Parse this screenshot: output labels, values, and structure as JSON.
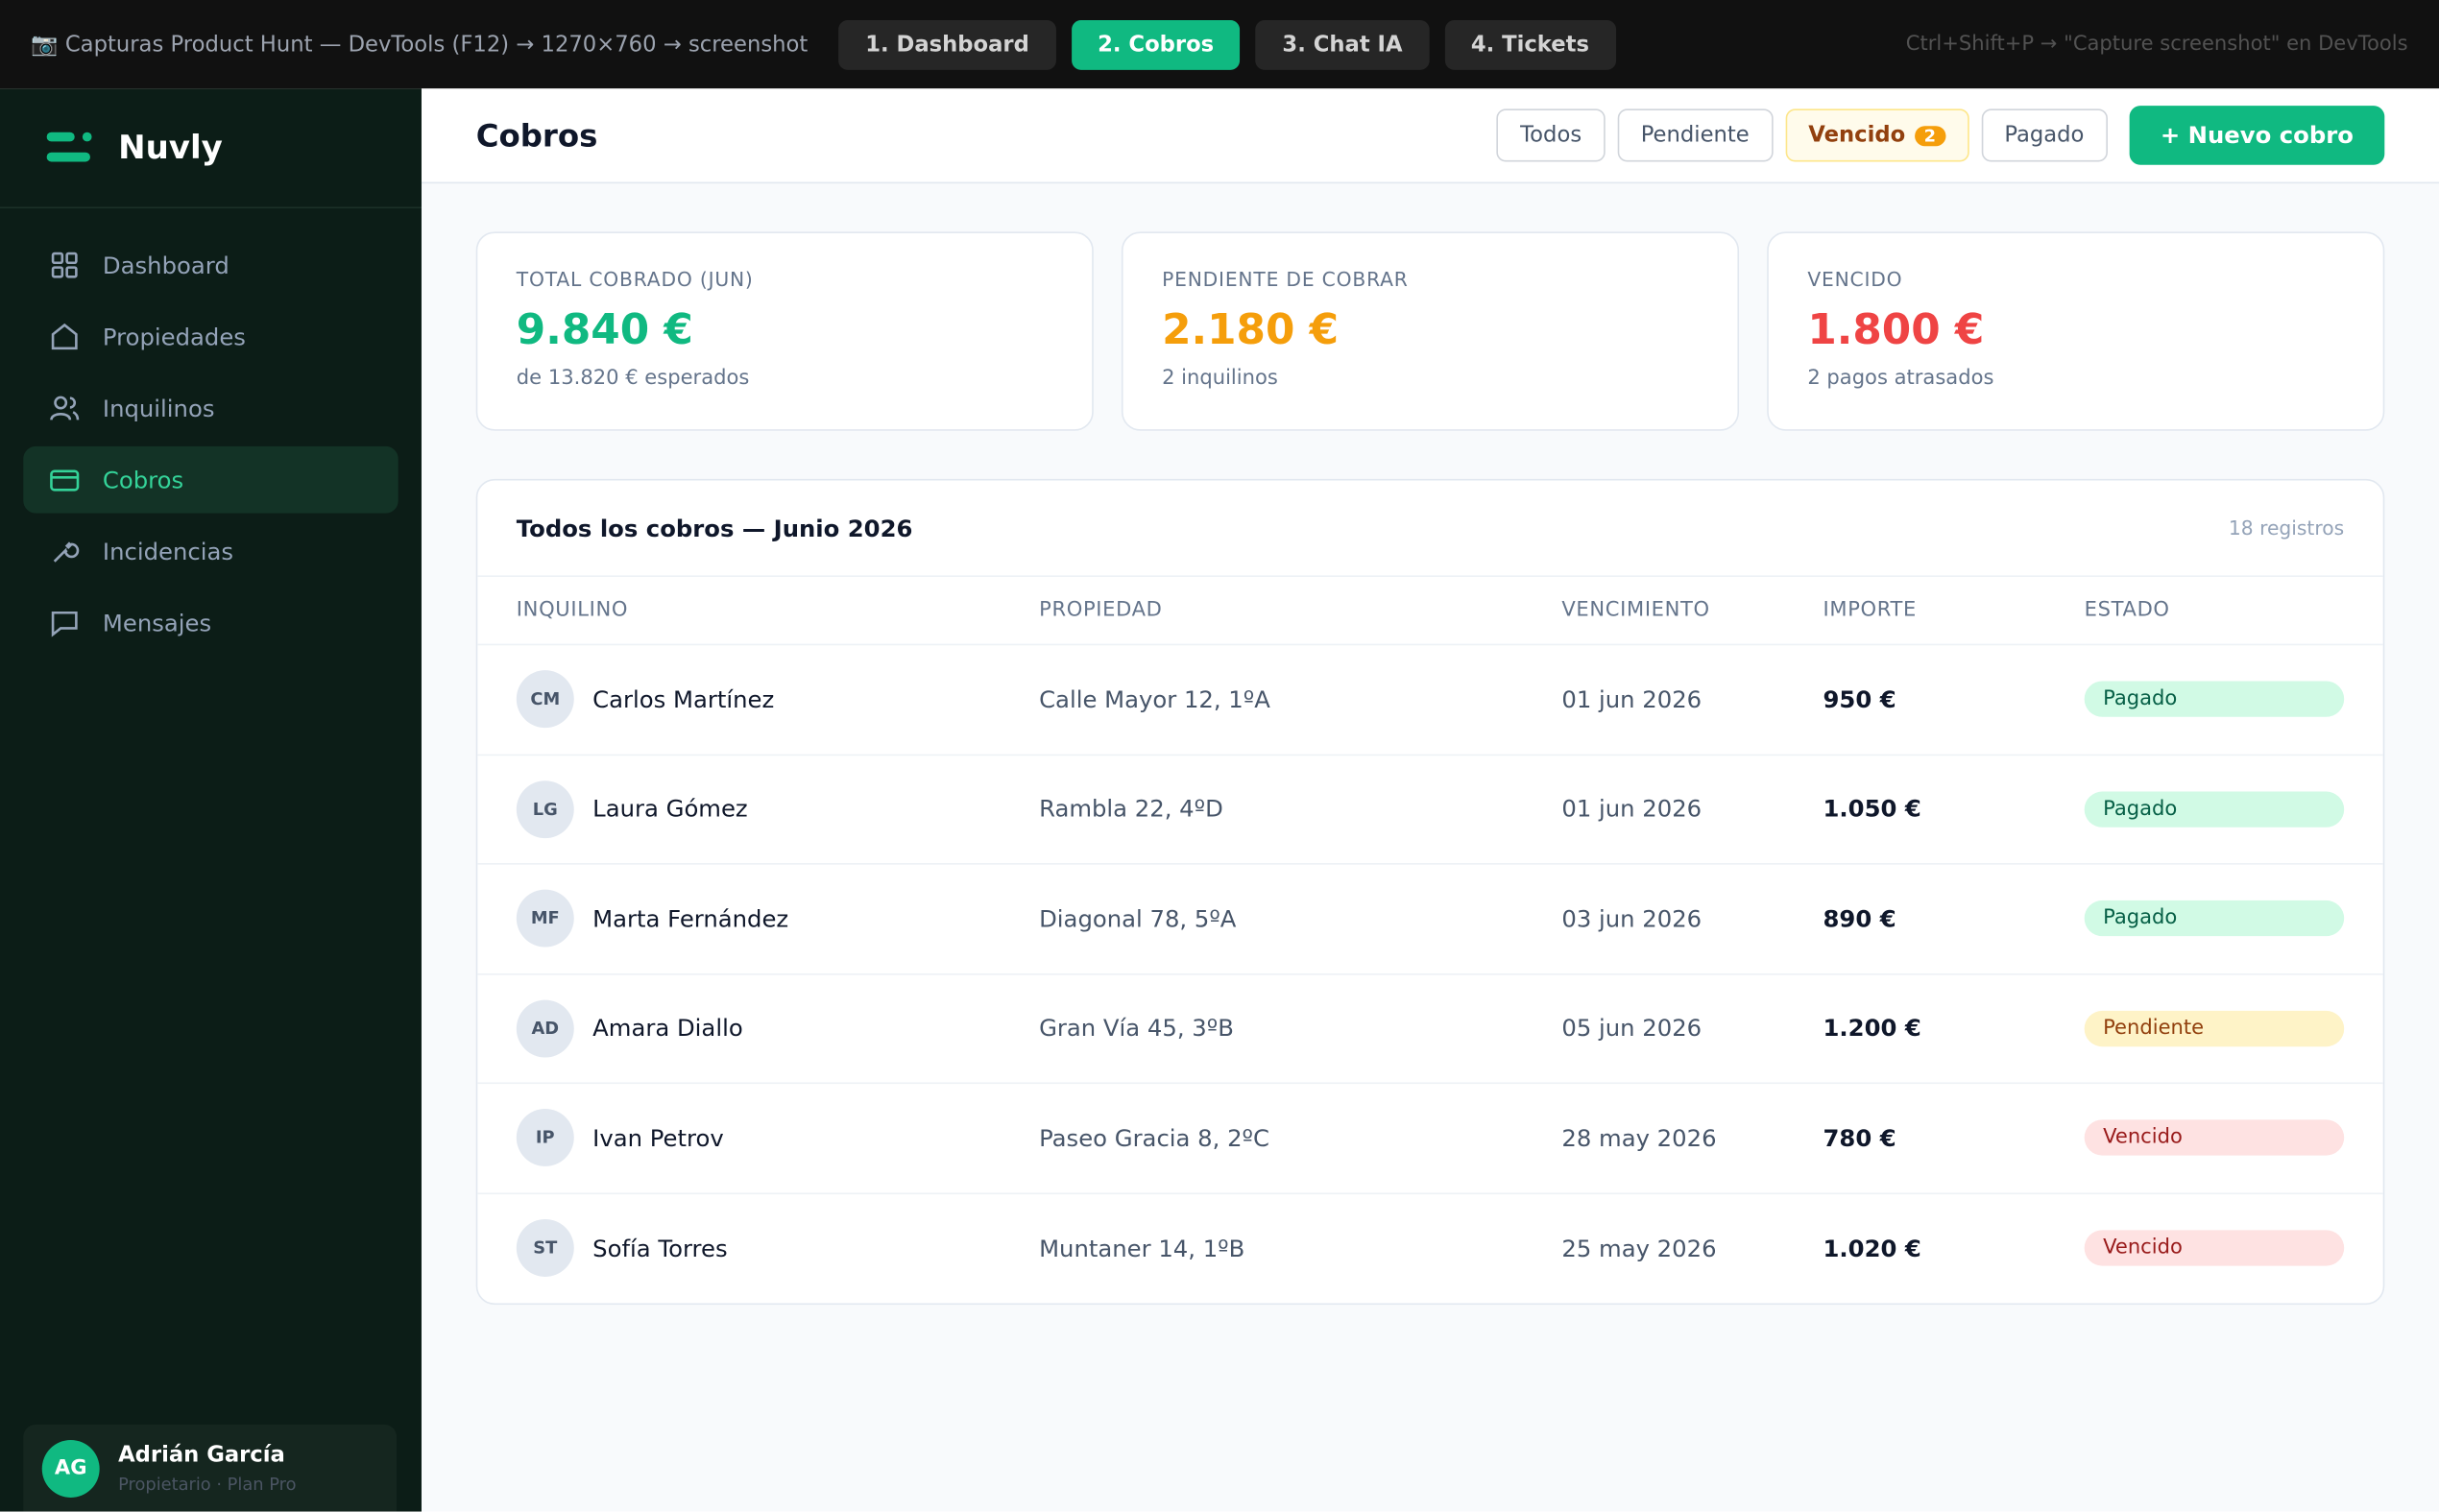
{
  "toolbar": {
    "caption": "📷 Capturas Product Hunt — DevTools (F12) → 1270×760 → screenshot",
    "tabs": [
      "1. Dashboard",
      "2. Cobros",
      "3. Chat IA",
      "4. Tickets"
    ],
    "active_tab": 1,
    "hint": "Ctrl+Shift+P → \"Capture screenshot\" en DevTools"
  },
  "sidebar": {
    "brand": "Nuvly",
    "nav": [
      "Dashboard",
      "Propiedades",
      "Inquilinos",
      "Cobros",
      "Incidencias",
      "Mensajes"
    ],
    "active": 3,
    "user": {
      "initials": "AG",
      "name": "Adrián García",
      "role": "Propietario · Plan Pro"
    }
  },
  "header": {
    "title": "Cobros",
    "filters": [
      "Todos",
      "Pendiente",
      "Vencido",
      "Pagado"
    ],
    "highlighted_filter": 2,
    "badge": "2",
    "button": "+ Nuevo cobro"
  },
  "kpis": [
    {
      "label": "TOTAL COBRADO (JUN)",
      "value": "9.840 €",
      "note": "de 13.820 € esperados",
      "color": "#10b981"
    },
    {
      "label": "PENDIENTE DE COBRAR",
      "value": "2.180 €",
      "note": "2 inquilinos",
      "color": "#f59e0b"
    },
    {
      "label": "VENCIDO",
      "value": "1.800 €",
      "note": "2 pagos atrasados",
      "color": "#ef4444"
    }
  ],
  "table": {
    "title": "Todos los cobros — Junio 2026",
    "count": "18 registros",
    "columns": [
      "INQUILINO",
      "PROPIEDAD",
      "VENCIMIENTO",
      "IMPORTE",
      "ESTADO"
    ],
    "rows": [
      {
        "initials": "CM",
        "name": "Carlos Martínez",
        "property": "Calle Mayor 12, 1ºA",
        "due": "01 jun 2026",
        "amount": "950 €",
        "status": "Pagado",
        "status_bg": "#d1fae5",
        "status_fg": "#065f46"
      },
      {
        "initials": "LG",
        "name": "Laura Gómez",
        "property": "Rambla 22, 4ºD",
        "due": "01 jun 2026",
        "amount": "1.050 €",
        "status": "Pagado",
        "status_bg": "#d1fae5",
        "status_fg": "#065f46"
      },
      {
        "initials": "MF",
        "name": "Marta Fernández",
        "property": "Diagonal 78, 5ºA",
        "due": "03 jun 2026",
        "amount": "890 €",
        "status": "Pagado",
        "status_bg": "#d1fae5",
        "status_fg": "#065f46"
      },
      {
        "initials": "AD",
        "name": "Amara Diallo",
        "property": "Gran Vía 45, 3ºB",
        "due": "05 jun 2026",
        "amount": "1.200 €",
        "status": "Pendiente",
        "status_bg": "#fef3c7",
        "status_fg": "#92400e"
      },
      {
        "initials": "IP",
        "name": "Ivan Petrov",
        "property": "Paseo Gracia 8, 2ºC",
        "due": "28 may 2026",
        "amount": "780 €",
        "status": "Vencido",
        "status_bg": "#fee2e2",
        "status_fg": "#991b1b"
      },
      {
        "initials": "ST",
        "name": "Sofía Torres",
        "property": "Muntaner 14, 1ºB",
        "due": "25 may 2026",
        "amount": "1.020 €",
        "status": "Vencido",
        "status_bg": "#fee2e2",
        "status_fg": "#991b1b"
      }
    ]
  }
}
